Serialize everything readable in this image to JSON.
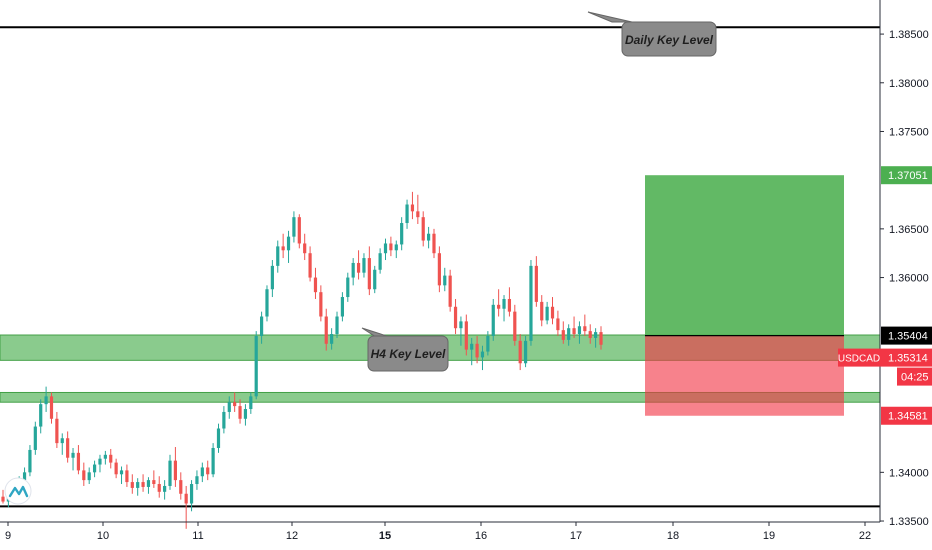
{
  "chart_data": {
    "type": "candlestick",
    "symbol": "USDCAD",
    "ylim": [
      1.3349,
      1.3885
    ],
    "x_ticks": [
      {
        "label": "9",
        "bold": false
      },
      {
        "label": "10",
        "bold": false
      },
      {
        "label": "11",
        "bold": false
      },
      {
        "label": "12",
        "bold": false
      },
      {
        "label": "15",
        "bold": true
      },
      {
        "label": "16",
        "bold": false
      },
      {
        "label": "17",
        "bold": false
      },
      {
        "label": "18",
        "bold": false
      },
      {
        "label": "19",
        "bold": false
      },
      {
        "label": "22",
        "bold": false
      }
    ],
    "y_ticks": [
      {
        "label": "1.38500",
        "value": 1.385
      },
      {
        "label": "1.38000",
        "value": 1.38
      },
      {
        "label": "1.37500",
        "value": 1.375
      },
      {
        "label": "1.36500",
        "value": 1.365
      },
      {
        "label": "1.36000",
        "value": 1.36
      },
      {
        "label": "1.34000",
        "value": 1.34
      },
      {
        "label": "1.33500",
        "value": 1.335
      }
    ],
    "price_tags": {
      "target": {
        "label": "1.37051",
        "value": 1.37051,
        "color": "#4caf50"
      },
      "entry": {
        "label": "1.35404",
        "value": 1.35404,
        "color": "#000000"
      },
      "current_symbol": "USDCAD",
      "current": {
        "label": "1.35314",
        "value": 1.35314,
        "color": "#f23645"
      },
      "countdown": "04:25",
      "stop": {
        "label": "1.34581",
        "value": 1.34581,
        "color": "#f23645"
      }
    },
    "horizontal_lines": [
      {
        "name": "daily-top",
        "value": 1.3857
      },
      {
        "name": "bottom",
        "value": 1.3365
      }
    ],
    "zones": [
      {
        "name": "h4-zone",
        "top": 1.3541,
        "bottom": 1.3515
      },
      {
        "name": "lower-zone",
        "top": 1.3482,
        "bottom": 1.3472
      }
    ],
    "position": {
      "entry": 1.35404,
      "target": 1.37051,
      "stop": 1.34581,
      "profit_color": "#4caf50",
      "loss_color": "#f23645"
    },
    "annotations": [
      {
        "text": "Daily Key Level"
      },
      {
        "text": "H4 Key Level"
      }
    ],
    "candles": [
      [
        1.3375,
        1.3382,
        1.3368,
        1.337
      ],
      [
        1.337,
        1.3378,
        1.3364,
        1.3375
      ],
      [
        1.3375,
        1.3386,
        1.3372,
        1.3383
      ],
      [
        1.3383,
        1.3396,
        1.338,
        1.3392
      ],
      [
        1.3392,
        1.3405,
        1.3388,
        1.34
      ],
      [
        1.34,
        1.3428,
        1.3396,
        1.3423
      ],
      [
        1.3423,
        1.3452,
        1.3418,
        1.3447
      ],
      [
        1.3447,
        1.3475,
        1.344,
        1.347
      ],
      [
        1.347,
        1.3488,
        1.3462,
        1.3478
      ],
      [
        1.3478,
        1.3482,
        1.345,
        1.3455
      ],
      [
        1.3455,
        1.3462,
        1.3425,
        1.343
      ],
      [
        1.343,
        1.344,
        1.3418,
        1.3435
      ],
      [
        1.3435,
        1.3442,
        1.341,
        1.3415
      ],
      [
        1.3415,
        1.3425,
        1.3402,
        1.342
      ],
      [
        1.342,
        1.3428,
        1.3398,
        1.3402
      ],
      [
        1.3402,
        1.341,
        1.3386,
        1.3392
      ],
      [
        1.3392,
        1.3405,
        1.3388,
        1.34
      ],
      [
        1.34,
        1.3412,
        1.3395,
        1.3408
      ],
      [
        1.3408,
        1.3418,
        1.34,
        1.3414
      ],
      [
        1.3414,
        1.3422,
        1.3408,
        1.3418
      ],
      [
        1.3418,
        1.3424,
        1.3404,
        1.341
      ],
      [
        1.341,
        1.3414,
        1.3394,
        1.3398
      ],
      [
        1.3398,
        1.3406,
        1.3388,
        1.3402
      ],
      [
        1.3402,
        1.3408,
        1.3385,
        1.339
      ],
      [
        1.339,
        1.3398,
        1.3378,
        1.3384
      ],
      [
        1.3384,
        1.3394,
        1.3376,
        1.339
      ],
      [
        1.339,
        1.3398,
        1.338,
        1.3385
      ],
      [
        1.3385,
        1.3395,
        1.3378,
        1.3392
      ],
      [
        1.3392,
        1.3402,
        1.3384,
        1.3388
      ],
      [
        1.3388,
        1.3396,
        1.3374,
        1.338
      ],
      [
        1.338,
        1.3392,
        1.3372,
        1.3386
      ],
      [
        1.3386,
        1.3418,
        1.3382,
        1.3412
      ],
      [
        1.3412,
        1.3426,
        1.3385,
        1.3392
      ],
      [
        1.3392,
        1.34,
        1.3372,
        1.3378
      ],
      [
        1.3378,
        1.3386,
        1.3342,
        1.3368
      ],
      [
        1.3368,
        1.3392,
        1.336,
        1.3388
      ],
      [
        1.3388,
        1.3402,
        1.3382,
        1.3396
      ],
      [
        1.3396,
        1.341,
        1.339,
        1.3405
      ],
      [
        1.3405,
        1.3412,
        1.3392,
        1.3398
      ],
      [
        1.3398,
        1.343,
        1.3395,
        1.3425
      ],
      [
        1.3425,
        1.345,
        1.342,
        1.3445
      ],
      [
        1.3445,
        1.3468,
        1.344,
        1.3462
      ],
      [
        1.3462,
        1.3478,
        1.3455,
        1.3472
      ],
      [
        1.3472,
        1.3482,
        1.3462,
        1.3468
      ],
      [
        1.3468,
        1.3475,
        1.345,
        1.3455
      ],
      [
        1.3455,
        1.347,
        1.3448,
        1.3465
      ],
      [
        1.3465,
        1.3482,
        1.346,
        1.3478
      ],
      [
        1.3478,
        1.3545,
        1.3475,
        1.354
      ],
      [
        1.354,
        1.3565,
        1.3532,
        1.356
      ],
      [
        1.356,
        1.3592,
        1.3555,
        1.3588
      ],
      [
        1.3588,
        1.3618,
        1.358,
        1.3612
      ],
      [
        1.3612,
        1.3638,
        1.3605,
        1.3632
      ],
      [
        1.3632,
        1.3645,
        1.362,
        1.3628
      ],
      [
        1.3628,
        1.3648,
        1.3615,
        1.3642
      ],
      [
        1.3642,
        1.3668,
        1.3636,
        1.3662
      ],
      [
        1.3662,
        1.3665,
        1.363,
        1.3635
      ],
      [
        1.3635,
        1.3645,
        1.3618,
        1.3625
      ],
      [
        1.3625,
        1.3632,
        1.3596,
        1.36
      ],
      [
        1.36,
        1.361,
        1.3578,
        1.3585
      ],
      [
        1.3585,
        1.3592,
        1.3555,
        1.356
      ],
      [
        1.356,
        1.3568,
        1.3525,
        1.3532
      ],
      [
        1.3532,
        1.3548,
        1.3526,
        1.3542
      ],
      [
        1.3542,
        1.3565,
        1.3538,
        1.356
      ],
      [
        1.356,
        1.3585,
        1.3555,
        1.358
      ],
      [
        1.358,
        1.3605,
        1.3575,
        1.36
      ],
      [
        1.36,
        1.362,
        1.3592,
        1.3615
      ],
      [
        1.3615,
        1.3628,
        1.3598,
        1.3605
      ],
      [
        1.3605,
        1.3625,
        1.36,
        1.362
      ],
      [
        1.362,
        1.3632,
        1.3582,
        1.3588
      ],
      [
        1.3588,
        1.3612,
        1.3584,
        1.3608
      ],
      [
        1.3608,
        1.363,
        1.3604,
        1.3625
      ],
      [
        1.3625,
        1.364,
        1.3618,
        1.3635
      ],
      [
        1.3635,
        1.3642,
        1.3622,
        1.3628
      ],
      [
        1.3628,
        1.3638,
        1.362,
        1.3634
      ],
      [
        1.3634,
        1.3662,
        1.3628,
        1.3656
      ],
      [
        1.3656,
        1.368,
        1.365,
        1.3675
      ],
      [
        1.3675,
        1.3688,
        1.366,
        1.3668
      ],
      [
        1.3668,
        1.3685,
        1.3655,
        1.3662
      ],
      [
        1.3662,
        1.3668,
        1.3632,
        1.3638
      ],
      [
        1.3638,
        1.3652,
        1.363,
        1.3645
      ],
      [
        1.3645,
        1.365,
        1.362,
        1.3625
      ],
      [
        1.3625,
        1.3632,
        1.3585,
        1.3592
      ],
      [
        1.3592,
        1.361,
        1.3586,
        1.3602
      ],
      [
        1.3602,
        1.3608,
        1.3565,
        1.357
      ],
      [
        1.357,
        1.3578,
        1.3542,
        1.3548
      ],
      [
        1.3548,
        1.356,
        1.353,
        1.3555
      ],
      [
        1.3555,
        1.3562,
        1.352,
        1.3526
      ],
      [
        1.3526,
        1.3538,
        1.351,
        1.3532
      ],
      [
        1.3532,
        1.354,
        1.3512,
        1.3518
      ],
      [
        1.3518,
        1.353,
        1.3505,
        1.3524
      ],
      [
        1.3524,
        1.3545,
        1.352,
        1.354
      ],
      [
        1.354,
        1.3578,
        1.3535,
        1.3572
      ],
      [
        1.3572,
        1.3588,
        1.356,
        1.3568
      ],
      [
        1.3568,
        1.3582,
        1.3555,
        1.3578
      ],
      [
        1.3578,
        1.359,
        1.356,
        1.3565
      ],
      [
        1.3565,
        1.3572,
        1.353,
        1.3535
      ],
      [
        1.3535,
        1.3542,
        1.3505,
        1.3512
      ],
      [
        1.3512,
        1.354,
        1.3508,
        1.3535
      ],
      [
        1.3535,
        1.3618,
        1.353,
        1.3612
      ],
      [
        1.3612,
        1.3622,
        1.357,
        1.3575
      ],
      [
        1.3575,
        1.3582,
        1.355,
        1.3556
      ],
      [
        1.3556,
        1.3575,
        1.3552,
        1.357
      ],
      [
        1.357,
        1.358,
        1.3552,
        1.3558
      ],
      [
        1.3558,
        1.3566,
        1.354,
        1.3546
      ],
      [
        1.3546,
        1.3555,
        1.3532,
        1.3536
      ],
      [
        1.3536,
        1.3552,
        1.353,
        1.3548
      ],
      [
        1.3548,
        1.356,
        1.3538,
        1.3542
      ],
      [
        1.3542,
        1.3555,
        1.3532,
        1.355
      ],
      [
        1.355,
        1.3562,
        1.354,
        1.3545
      ],
      [
        1.3545,
        1.3552,
        1.3532,
        1.3538
      ],
      [
        1.3538,
        1.3548,
        1.3528,
        1.3544
      ],
      [
        1.3544,
        1.355,
        1.3526,
        1.3531
      ]
    ]
  }
}
